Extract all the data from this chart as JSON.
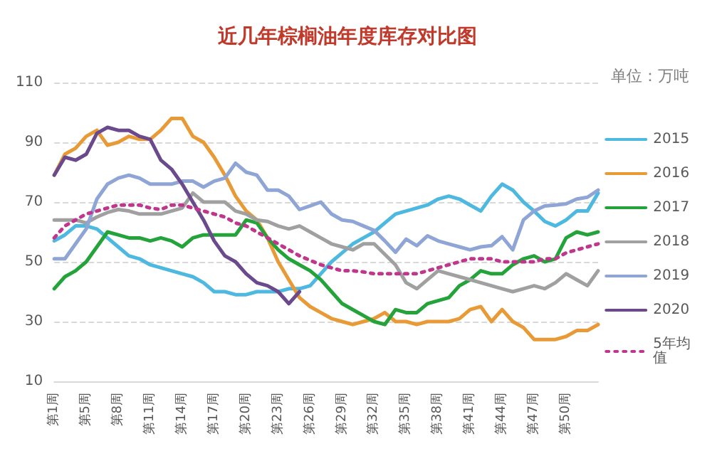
{
  "chart_data": {
    "type": "line",
    "title": "近几年棕榈油年度库存对比图",
    "annotations": [
      "单位：万吨"
    ],
    "categories": [
      "第1周",
      null,
      null,
      "第5周",
      null,
      null,
      "第8周",
      null,
      null,
      "第11周",
      null,
      null,
      "第14周",
      null,
      null,
      "第17周",
      null,
      null,
      "第20周",
      null,
      null,
      "第23周",
      null,
      null,
      "第26周",
      null,
      null,
      "第29周",
      null,
      null,
      "第32周",
      null,
      null,
      "第35周",
      null,
      null,
      "第38周",
      null,
      null,
      "第41周",
      null,
      null,
      "第44周",
      null,
      null,
      "第47周",
      null,
      null,
      "第50周",
      null,
      null,
      null
    ],
    "series": [
      {
        "name": "2015",
        "color": "#4db8e0",
        "values": [
          57,
          59,
          62,
          62,
          61,
          58,
          55,
          52,
          51,
          49,
          48,
          47,
          46,
          45,
          43,
          40,
          40,
          39,
          39,
          40,
          40,
          40,
          41,
          41,
          42,
          46,
          50,
          53,
          56,
          58,
          60,
          63,
          66,
          67,
          68,
          69,
          71,
          72,
          71,
          69,
          67,
          72,
          76,
          74,
          70,
          67,
          63.5,
          62,
          64,
          67,
          67,
          73
        ]
      },
      {
        "name": "2016",
        "color": "#e89a36",
        "values": [
          79,
          86,
          88,
          92,
          94,
          89,
          90,
          92,
          91,
          91,
          94,
          98,
          98,
          92,
          90,
          85,
          79,
          72,
          67,
          64,
          58,
          50,
          44,
          38,
          35,
          33,
          31,
          30,
          29,
          30,
          31,
          33,
          30,
          30,
          29,
          30,
          30,
          30,
          31,
          34,
          35,
          30,
          34,
          30,
          28,
          24,
          24,
          24,
          25,
          27,
          27,
          29
        ]
      },
      {
        "name": "2017",
        "color": "#23a33a",
        "values": [
          41,
          45,
          47,
          50,
          55,
          60,
          59,
          58,
          58,
          57,
          58,
          57,
          55,
          58,
          59,
          59,
          59,
          59,
          64,
          63,
          58,
          54,
          51,
          49,
          47,
          44,
          40,
          36,
          34,
          32,
          30,
          29,
          34,
          33,
          33,
          36,
          37,
          38,
          42,
          44,
          47,
          46,
          46,
          49,
          51,
          52,
          50,
          51,
          58,
          60,
          59,
          60
        ]
      },
      {
        "name": "2018",
        "color": "#a0a0a0",
        "values": [
          64,
          64,
          64,
          63,
          65,
          66.5,
          67.5,
          67,
          66,
          66,
          66,
          67,
          68,
          73,
          70,
          70,
          70,
          67,
          66,
          64,
          63.5,
          62,
          61,
          62,
          60,
          58,
          56,
          55,
          54,
          56,
          56,
          52.5,
          49,
          43,
          41,
          44,
          47,
          46,
          45,
          44,
          43,
          42,
          41,
          40,
          41,
          42,
          41,
          43,
          46,
          44,
          42,
          47
        ]
      },
      {
        "name": "2019",
        "color": "#8fa5d6",
        "values": [
          51,
          51,
          56,
          61,
          71,
          76,
          78,
          79,
          78,
          76,
          76,
          76,
          77,
          77,
          75,
          77,
          78,
          83,
          80,
          79,
          74,
          74,
          72,
          67.5,
          68.7,
          70,
          66,
          64,
          63.5,
          62,
          60.5,
          57,
          53.2,
          57.6,
          55.4,
          58.7,
          57,
          56,
          55,
          54,
          55,
          55.4,
          58.4,
          54,
          64,
          67,
          68.7,
          69,
          69.4,
          71,
          71.6,
          74
        ]
      },
      {
        "name": "2020",
        "color": "#6a4a8c",
        "values": [
          79,
          85,
          84,
          86,
          93,
          95,
          94,
          94,
          92,
          91,
          84,
          81,
          76,
          70,
          64,
          57,
          52,
          50,
          46,
          43,
          42,
          40,
          36,
          40,
          null,
          null,
          null,
          null,
          null,
          null,
          null,
          null,
          null,
          null,
          null,
          null,
          null,
          null,
          null,
          null,
          null,
          null,
          null,
          null,
          null,
          null,
          null,
          null,
          null,
          null,
          null,
          null
        ]
      },
      {
        "name": "5年均值",
        "color": "#c0368c",
        "line_style": "dotted",
        "values": [
          58,
          62,
          64,
          66,
          67,
          68,
          69,
          69,
          69,
          68,
          67.5,
          69,
          69,
          68,
          67,
          66,
          65,
          63,
          62,
          60,
          58,
          56,
          54,
          52,
          50.5,
          49,
          48,
          47,
          47,
          46.6,
          46,
          46,
          46,
          46,
          46,
          47,
          48,
          49,
          50,
          51,
          51,
          51,
          50,
          50,
          50,
          50,
          51,
          51,
          53,
          54,
          55,
          56
        ]
      }
    ],
    "ylim": [
      10,
      110
    ],
    "yticks": [
      10,
      30,
      50,
      70,
      90,
      110
    ],
    "grid": "y",
    "legend": "right",
    "marker": "none",
    "line_style": "solid"
  }
}
